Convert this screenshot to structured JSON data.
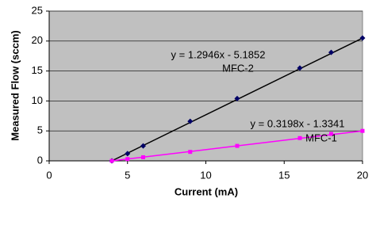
{
  "chart_data": {
    "type": "scatter",
    "x_label": "Current (mA)",
    "y_label": "Measured Flow (sccm)",
    "x": [
      4,
      5,
      6,
      9,
      12,
      16,
      18,
      20
    ],
    "series": [
      {
        "name": "MFC-2",
        "color": "#000066",
        "marker": "diamond",
        "values": [
          0,
          1.2,
          2.5,
          6.6,
          10.4,
          15.5,
          18.1,
          20.5
        ],
        "trendline": true,
        "equation": "y = 1.2946x - 5.1852"
      },
      {
        "name": "MFC-1",
        "color": "#ff00ff",
        "marker": "square",
        "values": [
          0,
          0.3,
          0.6,
          1.5,
          2.5,
          3.8,
          4.5,
          5.0
        ],
        "trendline": true,
        "equation": "y = 0.3198x - 1.3341"
      }
    ],
    "trendline_colors": [
      "#000000",
      "#ff00ff"
    ],
    "xlim": [
      0,
      20
    ],
    "xticks": [
      0,
      5,
      10,
      15,
      20
    ],
    "ylim": [
      0,
      25
    ],
    "yticks": [
      0,
      5,
      10,
      15,
      20,
      25
    ],
    "grid": true,
    "plot_background": "#c0c0c0"
  }
}
